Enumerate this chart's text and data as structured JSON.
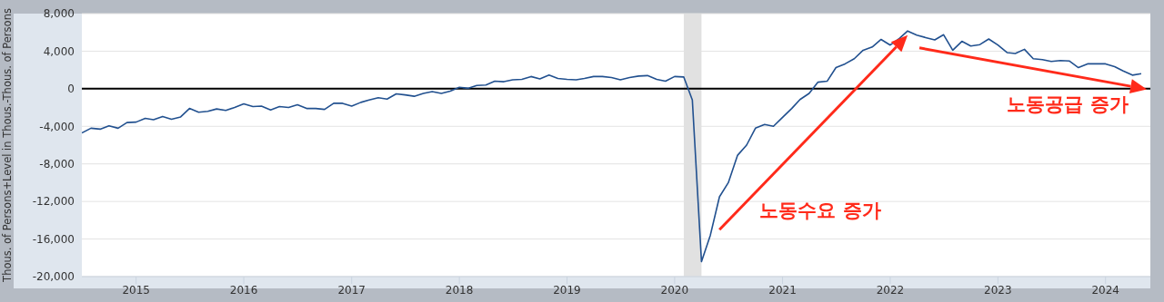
{
  "chart_data": {
    "type": "line",
    "ylabel": "Thous. of Persons+Level in Thous.-Thous. of Persons",
    "x": [
      "2014-07",
      "2014-08",
      "2014-09",
      "2014-10",
      "2014-11",
      "2014-12",
      "2015-01",
      "2015-02",
      "2015-03",
      "2015-04",
      "2015-05",
      "2015-06",
      "2015-07",
      "2015-08",
      "2015-09",
      "2015-10",
      "2015-11",
      "2015-12",
      "2016-01",
      "2016-02",
      "2016-03",
      "2016-04",
      "2016-05",
      "2016-06",
      "2016-07",
      "2016-08",
      "2016-09",
      "2016-10",
      "2016-11",
      "2016-12",
      "2017-01",
      "2017-02",
      "2017-03",
      "2017-04",
      "2017-05",
      "2017-06",
      "2017-07",
      "2017-08",
      "2017-09",
      "2017-10",
      "2017-11",
      "2017-12",
      "2018-01",
      "2018-02",
      "2018-03",
      "2018-04",
      "2018-05",
      "2018-06",
      "2018-07",
      "2018-08",
      "2018-09",
      "2018-10",
      "2018-11",
      "2018-12",
      "2019-01",
      "2019-02",
      "2019-03",
      "2019-04",
      "2019-05",
      "2019-06",
      "2019-07",
      "2019-08",
      "2019-09",
      "2019-10",
      "2019-11",
      "2019-12",
      "2020-01",
      "2020-02",
      "2020-03",
      "2020-04",
      "2020-05",
      "2020-06",
      "2020-07",
      "2020-08",
      "2020-09",
      "2020-10",
      "2020-11",
      "2020-12",
      "2021-01",
      "2021-02",
      "2021-03",
      "2021-04",
      "2021-05",
      "2021-06",
      "2021-07",
      "2021-08",
      "2021-09",
      "2021-10",
      "2021-11",
      "2021-12",
      "2022-01",
      "2022-02",
      "2022-03",
      "2022-04",
      "2022-05",
      "2022-06",
      "2022-07",
      "2022-08",
      "2022-09",
      "2022-10",
      "2022-11",
      "2022-12",
      "2023-01",
      "2023-02",
      "2023-03",
      "2023-04",
      "2023-05",
      "2023-06",
      "2023-07",
      "2023-08",
      "2023-09",
      "2023-10",
      "2023-11",
      "2023-12",
      "2024-01",
      "2024-02",
      "2024-03",
      "2024-04",
      "2024-05"
    ],
    "series": [
      {
        "color": "#21508f",
        "values": [
          -4700,
          -4200,
          -4300,
          -3950,
          -4200,
          -3600,
          -3550,
          -3150,
          -3300,
          -2950,
          -3250,
          -3000,
          -2100,
          -2500,
          -2400,
          -2150,
          -2300,
          -2000,
          -1600,
          -1900,
          -1850,
          -2250,
          -1900,
          -2000,
          -1700,
          -2100,
          -2100,
          -2200,
          -1550,
          -1550,
          -1850,
          -1450,
          -1200,
          -950,
          -1100,
          -550,
          -650,
          -800,
          -500,
          -300,
          -500,
          -250,
          150,
          50,
          350,
          400,
          800,
          750,
          950,
          1000,
          1300,
          1050,
          1450,
          1100,
          1000,
          950,
          1100,
          1300,
          1300,
          1200,
          950,
          1200,
          1350,
          1400,
          1000,
          800,
          1300,
          1250,
          -1200,
          -18400,
          -15600,
          -11500,
          -10000,
          -7100,
          -6000,
          -4200,
          -3800,
          -4000,
          -3050,
          -2100,
          -1150,
          -500,
          700,
          800,
          2250,
          2650,
          3200,
          4100,
          4450,
          5250,
          4650,
          5350,
          6150,
          5700,
          5450,
          5200,
          5750,
          4100,
          5050,
          4550,
          4700,
          5300,
          4650,
          3850,
          3750,
          4200,
          3200,
          3100,
          2900,
          3000,
          2950,
          2250,
          2650,
          2650,
          2650,
          2350,
          1900,
          1450,
          1600
        ]
      }
    ],
    "xlim": [
      "2014-07",
      "2024-06"
    ],
    "xticks": [
      {
        "value": "2015-01",
        "label": "2015"
      },
      {
        "value": "2016-01",
        "label": "2016"
      },
      {
        "value": "2017-01",
        "label": "2017"
      },
      {
        "value": "2018-01",
        "label": "2018"
      },
      {
        "value": "2019-01",
        "label": "2019"
      },
      {
        "value": "2020-01",
        "label": "2020"
      },
      {
        "value": "2021-01",
        "label": "2021"
      },
      {
        "value": "2022-01",
        "label": "2022"
      },
      {
        "value": "2023-01",
        "label": "2023"
      },
      {
        "value": "2024-01",
        "label": "2024"
      }
    ],
    "ylim": [
      -20000,
      8000
    ],
    "yticks": [
      {
        "value": -20000,
        "label": "-20,000"
      },
      {
        "value": -16000,
        "label": "-16,000"
      },
      {
        "value": -12000,
        "label": "-12,000"
      },
      {
        "value": -8000,
        "label": "-8,000"
      },
      {
        "value": -4000,
        "label": "-4,000"
      },
      0,
      {
        "value": 4000,
        "label": "4,000"
      },
      {
        "value": 8000,
        "label": "8,000"
      }
    ],
    "grid": "y",
    "ref_lines": [
      {
        "axis": "y",
        "value": 0,
        "color": "#000000"
      }
    ],
    "bands": [
      {
        "axis": "x",
        "from": "2020-02",
        "to": "2020-04",
        "color": "#e1e1e1"
      }
    ],
    "annotations": [
      "노동수요 증가",
      "노동공급 증가"
    ],
    "line_style": "solid"
  }
}
